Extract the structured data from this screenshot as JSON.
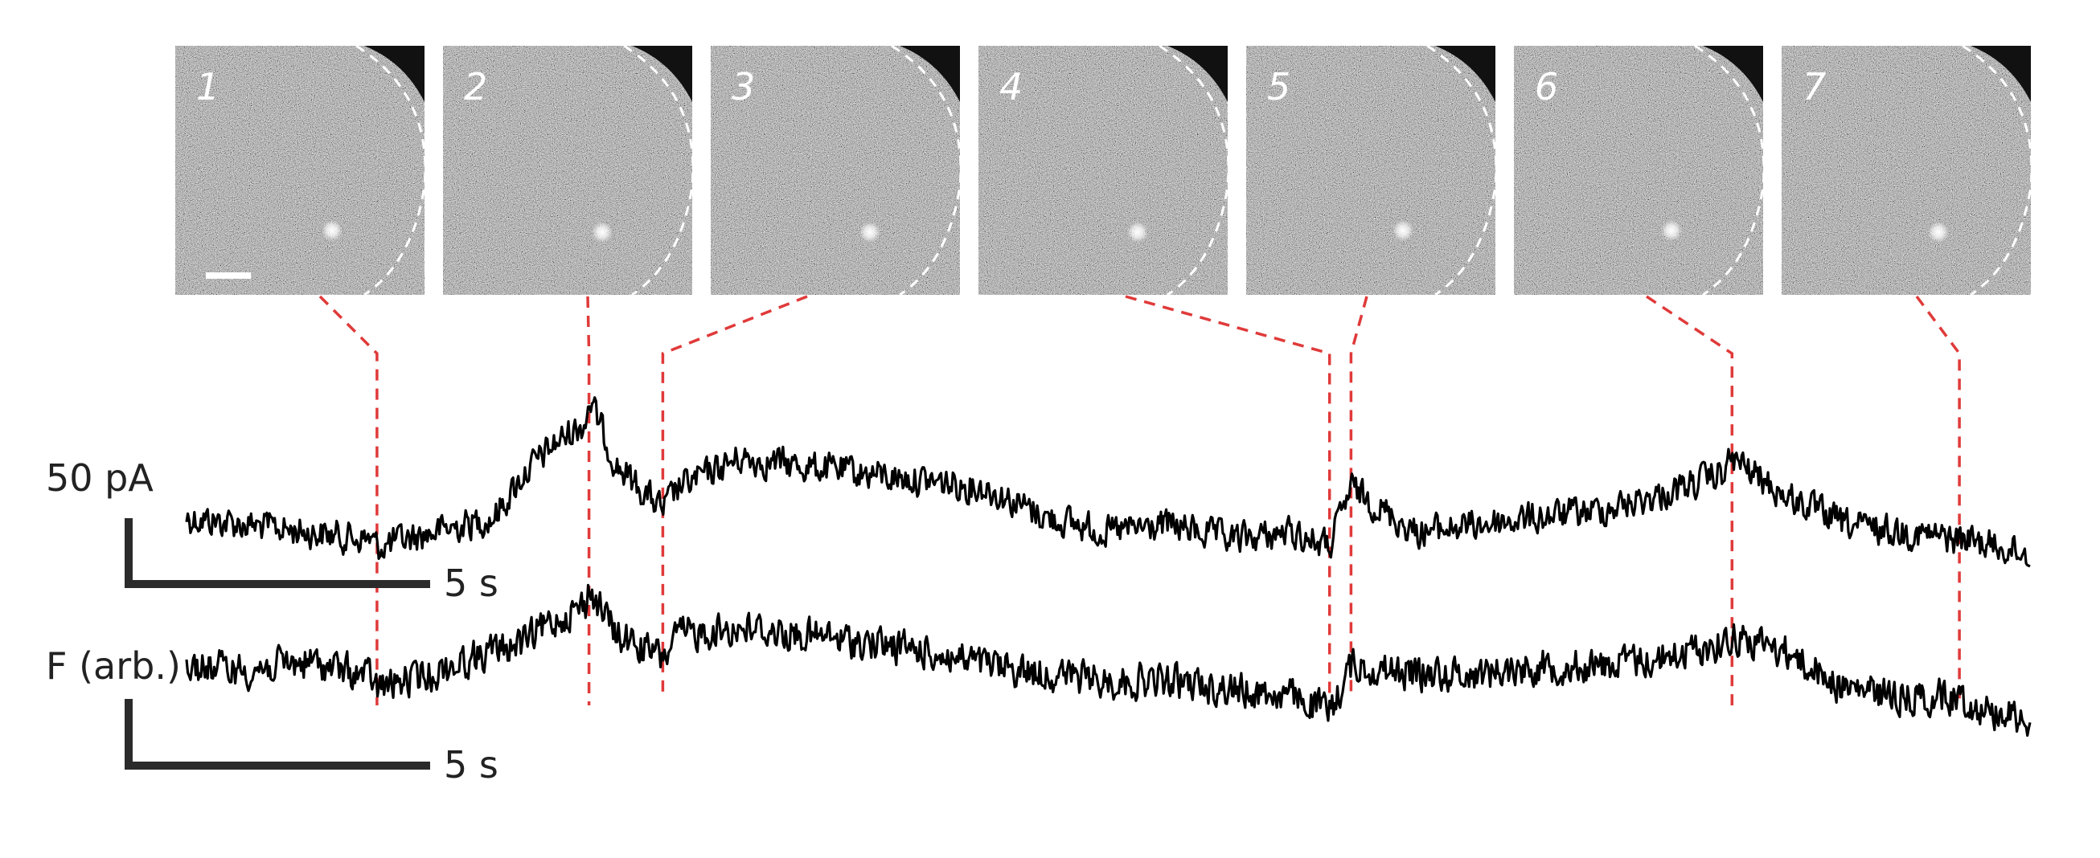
{
  "chart_data": {
    "type": "line",
    "title": "",
    "panels": [
      {
        "label": "1",
        "frame_time_s": 6.2
      },
      {
        "label": "2",
        "frame_time_s": 13.1
      },
      {
        "label": "3",
        "frame_time_s": 15.5
      },
      {
        "label": "4",
        "frame_time_s": 37.2
      },
      {
        "label": "5",
        "frame_time_s": 37.9
      },
      {
        "label": "6",
        "frame_time_s": 50.3
      },
      {
        "label": "7",
        "frame_time_s": 57.7
      }
    ],
    "series": [
      {
        "label": "50 pA",
        "x": [
          0,
          2,
          4,
          6,
          6.2,
          8,
          10,
          11,
          12,
          13,
          13.1,
          14,
          15.5,
          16,
          18,
          20,
          22,
          24,
          26,
          28,
          30,
          32,
          34,
          36,
          37.2,
          37.9,
          40,
          42,
          44,
          46,
          48,
          50,
          50.3,
          52,
          54,
          56,
          57.7,
          58,
          60
        ],
        "values": [
          -2,
          -4,
          -6,
          -8,
          -10,
          -6,
          -2,
          10,
          18,
          24,
          30,
          12,
          0,
          6,
          14,
          12,
          10,
          8,
          6,
          -2,
          -6,
          -4,
          -8,
          -6,
          -10,
          6,
          -6,
          -4,
          -2,
          0,
          4,
          10,
          14,
          4,
          -4,
          -6,
          -8,
          -8,
          -12
        ]
      },
      {
        "label": "F (arb.)",
        "x": [
          0,
          2,
          4,
          6,
          6.2,
          8,
          10,
          11,
          12,
          13,
          13.1,
          14,
          15.5,
          16,
          18,
          20,
          22,
          24,
          26,
          28,
          30,
          32,
          34,
          36,
          37.2,
          37.9,
          40,
          42,
          44,
          46,
          48,
          50,
          50.3,
          52,
          54,
          56,
          57.7,
          58,
          60
        ],
        "values": [
          4,
          3,
          5,
          1,
          -2,
          2,
          8,
          10,
          16,
          20,
          24,
          12,
          6,
          12,
          14,
          12,
          10,
          8,
          4,
          2,
          0,
          0,
          -2,
          -4,
          -8,
          4,
          2,
          2,
          4,
          4,
          6,
          10,
          12,
          8,
          -2,
          -4,
          -4,
          -6,
          -10
        ]
      }
    ],
    "scale_bars": [
      {
        "label": "50 pA",
        "time_label": "5 s"
      },
      {
        "label": "F (arb.)",
        "time_label": "5 s"
      }
    ],
    "xlim": [
      0,
      60
    ],
    "grid": false,
    "legend": "none",
    "colors": {
      "trace": "#000000",
      "leader": "#e03a3a",
      "scalebar": "#2b2b2b"
    }
  }
}
